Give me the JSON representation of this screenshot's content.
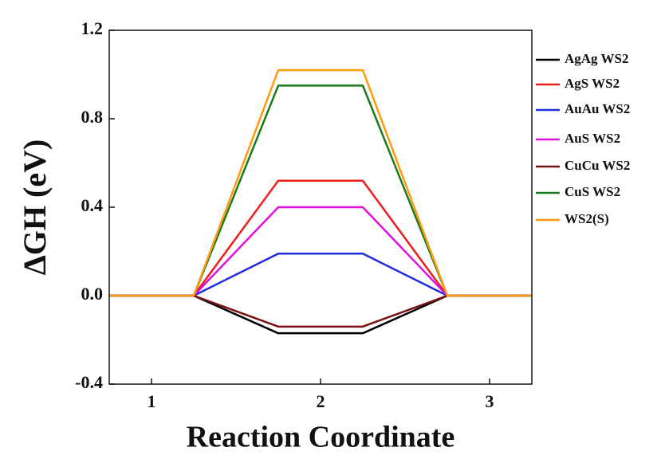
{
  "chart_data": {
    "type": "line",
    "ylabel": "ΔGH (eV)",
    "xlabel": "Reaction Coordinate",
    "x": [
      0.75,
      1.25,
      1.75,
      2.25,
      2.75,
      3.25
    ],
    "xlim": [
      0.75,
      3.25
    ],
    "xticks": [
      1,
      2,
      3
    ],
    "ylim": [
      -0.4,
      1.2
    ],
    "yticks": [
      -0.4,
      {
        "value": 0,
        "label": "0.0"
      },
      0.4,
      0.8,
      1.2
    ],
    "legend": "outside-right",
    "series": [
      {
        "name": "AgAg WS2",
        "color": "#000000",
        "values": [
          0,
          0,
          -0.17,
          -0.17,
          0,
          0
        ]
      },
      {
        "name": "AgS WS2",
        "color": "#ee1c1c",
        "values": [
          0,
          0,
          0.52,
          0.52,
          0,
          0
        ]
      },
      {
        "name": "AuAu WS2",
        "color": "#1c2ee0",
        "values": [
          0,
          0,
          0.19,
          0.19,
          0,
          0
        ]
      },
      {
        "name": "AuS WS2",
        "color": "#e010e0",
        "values": [
          0,
          0,
          0.4,
          0.4,
          0,
          0
        ]
      },
      {
        "name": "CuCu WS2",
        "color": "#7a1010",
        "values": [
          0,
          0,
          -0.14,
          -0.14,
          0,
          0
        ]
      },
      {
        "name": "CuS WS2",
        "color": "#1a7a1a",
        "values": [
          0,
          0,
          0.95,
          0.95,
          0,
          0
        ]
      },
      {
        "name": "WS2(S)",
        "color": "#ff9a10",
        "values": [
          0,
          0,
          1.02,
          1.02,
          0,
          0
        ]
      }
    ]
  }
}
